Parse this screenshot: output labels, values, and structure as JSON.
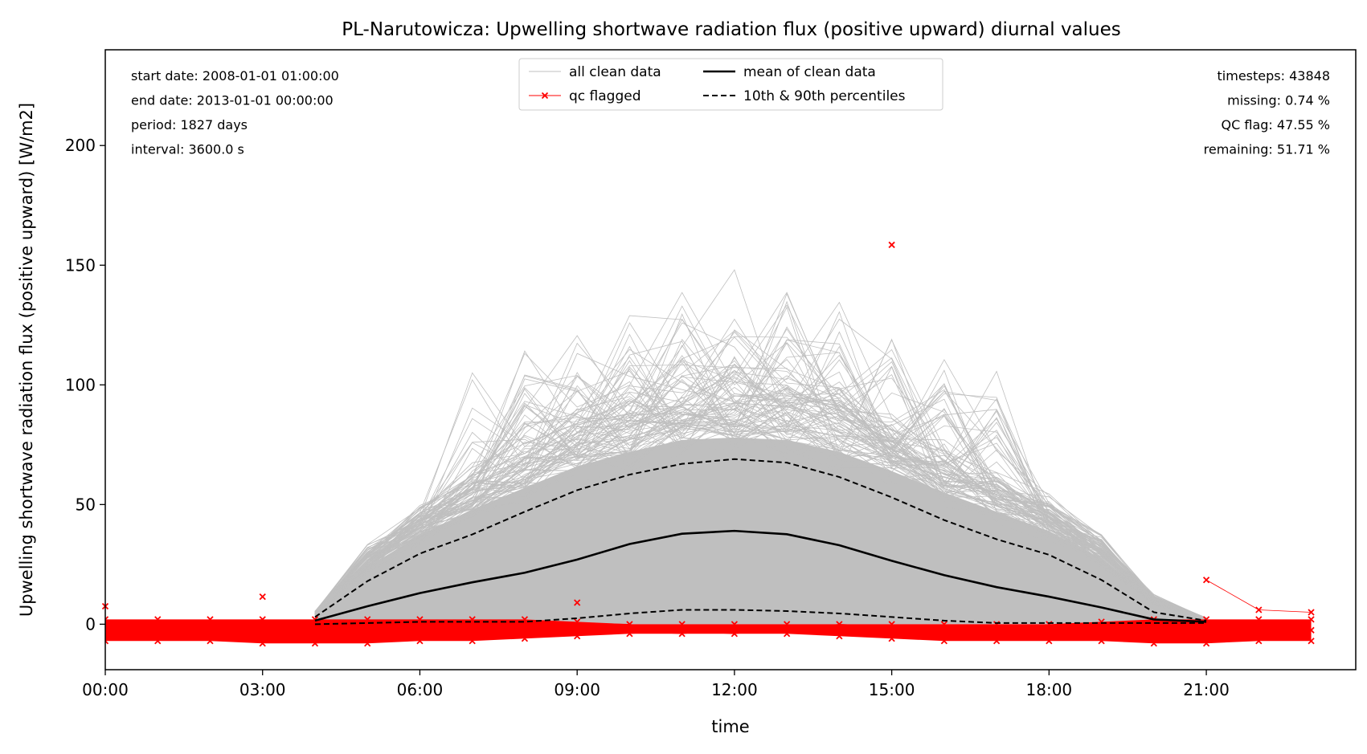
{
  "chart_data": {
    "type": "line",
    "title": "PL-Narutowicza: Upwelling shortwave radiation flux (positive upward) diurnal values",
    "xlabel": "time",
    "ylabel": "Upwelling shortwave radiation flux (positive upward) [W/m2]",
    "xlim": [
      0,
      23.85
    ],
    "ylim": [
      -19,
      240
    ],
    "x_ticks": [
      {
        "value": 0,
        "label": "00:00"
      },
      {
        "value": 3,
        "label": "03:00"
      },
      {
        "value": 6,
        "label": "06:00"
      },
      {
        "value": 9,
        "label": "09:00"
      },
      {
        "value": 12,
        "label": "12:00"
      },
      {
        "value": 15,
        "label": "15:00"
      },
      {
        "value": 18,
        "label": "18:00"
      },
      {
        "value": 21,
        "label": "21:00"
      }
    ],
    "y_ticks": [
      {
        "value": 0,
        "label": "0"
      },
      {
        "value": 50,
        "label": "50"
      },
      {
        "value": 100,
        "label": "100"
      },
      {
        "value": 150,
        "label": "150"
      },
      {
        "value": 200,
        "label": "200"
      }
    ],
    "grid": false,
    "legend_position": "top-center",
    "legend": [
      {
        "label": "all clean data",
        "style": "thin-gray-line"
      },
      {
        "label": "qc flagged",
        "style": "red-line-x-marker"
      },
      {
        "label": "mean of clean data",
        "style": "black-solid"
      },
      {
        "label": "10th & 90th percentiles",
        "style": "black-dashed"
      }
    ],
    "series": [
      {
        "name": "mean of clean data",
        "x": [
          4,
          5,
          6,
          7,
          8,
          9,
          10,
          11,
          12,
          13,
          14,
          15,
          16,
          17,
          18,
          19,
          20,
          21
        ],
        "values": [
          1.5,
          7.5,
          13,
          17.5,
          21.5,
          27,
          33.5,
          37.8,
          39,
          37.6,
          33,
          26.5,
          20.5,
          15.5,
          11.5,
          7,
          2,
          1
        ]
      },
      {
        "name": "10th & 90th percentiles",
        "x": [
          4,
          5,
          6,
          7,
          8,
          9,
          10,
          11,
          12,
          13,
          14,
          15,
          16,
          17,
          18,
          19,
          20,
          21
        ],
        "values": [
          3,
          18,
          29.5,
          37.5,
          47,
          56,
          62.5,
          67,
          69,
          67.5,
          61.5,
          53,
          43.5,
          35.5,
          29,
          18.5,
          5,
          1.5
        ]
      },
      {
        "name": "10th & 90th percentiles",
        "x": [
          4,
          5,
          6,
          7,
          8,
          9,
          10,
          11,
          12,
          13,
          14,
          15,
          16,
          17,
          18,
          19,
          20,
          21
        ],
        "values": [
          0,
          0.5,
          1,
          1,
          1,
          2.5,
          4.5,
          6,
          6,
          5.5,
          4.5,
          3,
          1.5,
          0.5,
          0.5,
          0.5,
          0.5,
          0.5
        ]
      },
      {
        "name": "all clean data",
        "x": [
          4,
          5,
          6,
          7,
          8,
          9,
          10,
          11,
          12,
          13,
          14,
          15,
          16,
          17,
          18,
          19,
          20,
          21
        ],
        "upper": [
          4,
          24,
          37,
          48,
          57,
          66,
          72,
          77,
          78,
          77,
          72,
          64,
          55,
          47,
          39,
          27,
          9,
          2
        ],
        "lower": [
          0,
          0,
          0,
          0,
          0,
          0,
          0,
          0,
          0,
          0,
          0,
          0,
          0,
          0,
          0,
          0,
          0,
          0
        ]
      },
      {
        "name": "qc flagged",
        "x": [
          0,
          1,
          2,
          3,
          4,
          5,
          6,
          7,
          8,
          9,
          10,
          11,
          12,
          13,
          14,
          15,
          16,
          17,
          18,
          19,
          20,
          21,
          22,
          23
        ],
        "upper": [
          2,
          2,
          2,
          2,
          2,
          2,
          2,
          2,
          2,
          1,
          0,
          0,
          0,
          0,
          0,
          0,
          0,
          0,
          0,
          1,
          2,
          2,
          2,
          2
        ],
        "lower": [
          -7,
          -7,
          -7,
          -8,
          -8,
          -8,
          -7,
          -7,
          -6,
          -5,
          -4,
          -4,
          -4,
          -4,
          -5,
          -6,
          -7,
          -7,
          -7,
          -7,
          -8,
          -8,
          -7,
          -7
        ],
        "outliers": [
          [
            0,
            7.5
          ],
          [
            3,
            11.5
          ],
          [
            9,
            9
          ],
          [
            15,
            158.5
          ],
          [
            21,
            18.5
          ],
          [
            22,
            6
          ],
          [
            23,
            5
          ]
        ]
      }
    ]
  },
  "annotations_left": [
    "start date: 2008-01-01 01:00:00",
    "end date: 2013-01-01 00:00:00",
    "period: 1827 days",
    "interval: 3600.0 s"
  ],
  "annotations_right": [
    "timesteps: 43848",
    "missing: 0.74 %",
    "QC flag: 47.55 %",
    "remaining: 51.71 %"
  ],
  "colors": {
    "clean": "#bfbfbf",
    "flagged": "#ff0000",
    "mean": "#000000",
    "percentile": "#000000"
  }
}
